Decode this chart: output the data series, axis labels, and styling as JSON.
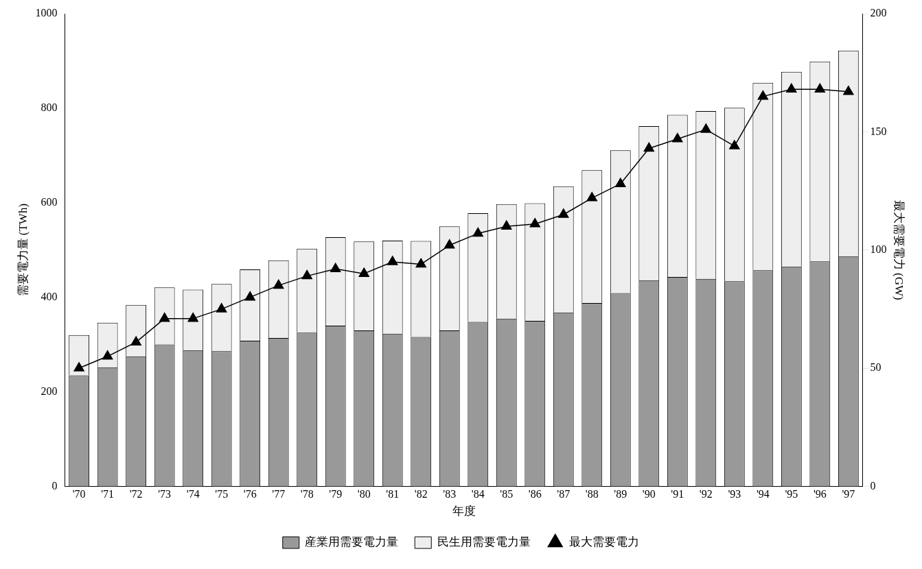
{
  "chart_data": {
    "type": "bar",
    "stacked": true,
    "xlabel": "年度",
    "ylabel": "需要電力量 (TWh)",
    "y2label": "最大需要電力 (GW)",
    "categories": [
      "'70",
      "'71",
      "'72",
      "'73",
      "'74",
      "'75",
      "'76",
      "'77",
      "'78",
      "'79",
      "'80",
      "'81",
      "'82",
      "'83",
      "'84",
      "'85",
      "'86",
      "'87",
      "'88",
      "'89",
      "'90",
      "'91",
      "'92",
      "'93",
      "'94",
      "'95",
      "'96",
      "'97"
    ],
    "series": [
      {
        "name": "産業用需要電力量",
        "color": "#999999",
        "values": [
          235,
          252,
          275,
          300,
          288,
          286,
          308,
          314,
          325,
          340,
          330,
          323,
          316,
          330,
          348,
          355,
          350,
          368,
          388,
          409,
          436,
          443,
          439,
          434,
          457,
          465,
          476,
          487
        ]
      },
      {
        "name": "民生用需要電力量",
        "color": "#eeeeee",
        "values": [
          85,
          94,
          109,
          121,
          128,
          142,
          151,
          164,
          178,
          187,
          188,
          197,
          203,
          220,
          230,
          242,
          249,
          267,
          281,
          302,
          326,
          343,
          355,
          367,
          397,
          412,
          423,
          435
        ]
      },
      {
        "name": "最大需要電力",
        "type": "line",
        "axis": "y2",
        "color": "#000000",
        "marker": "triangle",
        "values": [
          50,
          55,
          61,
          71,
          71,
          75,
          80,
          85,
          89,
          92,
          90,
          95,
          94,
          102,
          107,
          110,
          111,
          115,
          122,
          128,
          143,
          147,
          151,
          144,
          165,
          168,
          168,
          167
        ]
      }
    ],
    "ylim": [
      0,
      1000
    ],
    "yticks": [
      0,
      200,
      400,
      600,
      800,
      1000
    ],
    "y2lim": [
      0,
      200
    ],
    "y2ticks": [
      0,
      50,
      100,
      150,
      200
    ],
    "grid": false,
    "legend": "bottom"
  }
}
